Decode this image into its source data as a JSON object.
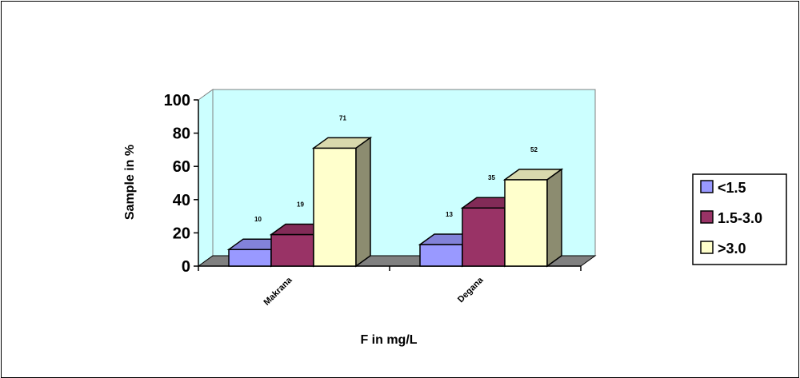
{
  "chart_data": {
    "type": "bar",
    "categories": [
      "Makrana",
      "Degana"
    ],
    "series": [
      {
        "name": "<1.5",
        "values": [
          10,
          13
        ],
        "color": "#9999ff"
      },
      {
        "name": "1.5-3.0",
        "values": [
          19,
          35
        ],
        "color": "#993366"
      },
      {
        "name": ">3.0",
        "values": [
          71,
          52
        ],
        "color": "#ffffcc"
      }
    ],
    "xlabel": "F in mg/L",
    "ylabel": "Sample in %",
    "ylim": [
      0,
      100
    ],
    "yticks": [
      "0",
      "20",
      "40",
      "60",
      "80",
      "100"
    ],
    "grid": false,
    "three_d": true,
    "wall_color": "#ccffff",
    "floor_color": "#808080",
    "legend_position": "right"
  }
}
